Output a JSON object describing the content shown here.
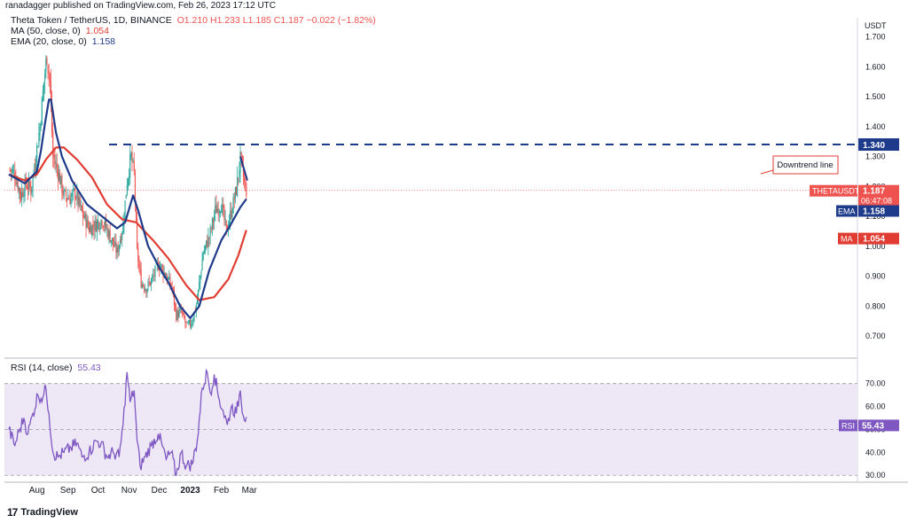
{
  "header": {
    "published": "ranadagger published on TradingView.com, Feb 26, 2023 17:12 UTC"
  },
  "legend": {
    "symbol": "Theta Token / TetherUS, 1D, BINANCE",
    "ohlc": "O1.210 H1.233 L1.185 C1.187 −0.022 (−1.82%)",
    "ma_label": "MA (50, close, 0)",
    "ma_value": "1.054",
    "ema_label": "EMA (20, close, 0)",
    "ema_value": "1.158",
    "rsi_label": "RSI (14, close)",
    "rsi_value": "55.43"
  },
  "brand": {
    "name": "TradingView",
    "logo": "17"
  },
  "colors": {
    "up": "#26a69a",
    "down": "#ef5350",
    "ema": "#1e3a8a",
    "ma": "#e03c31",
    "rsi": "#7e57c2",
    "band": "#ede7f6",
    "resistance": "#1e3a8a",
    "trend": "#1e3a8a"
  },
  "chart_data": [
    {
      "type": "candlestick",
      "title": "Theta Token / TetherUS, 1D, BINANCE",
      "y_axis_unit": "USDT",
      "ylim": [
        0.65,
        1.74
      ],
      "yticks": [
        "1.700",
        "1.600",
        "1.500",
        "1.400",
        "1.300",
        "1.200",
        "1.100",
        "1.000",
        "0.900",
        "0.800",
        "0.700"
      ],
      "xticks": [
        "Aug",
        "Sep",
        "Oct",
        "Nov",
        "Dec",
        "2023",
        "Feb",
        "Mar"
      ],
      "price_labels": [
        {
          "name": "1.340",
          "value": 1.34
        },
        {
          "name": "THETAUSDT",
          "value": 1.187,
          "text": "1.187",
          "extra": "06:47:08"
        },
        {
          "name": "EMA",
          "value": 1.158,
          "text": "1.158"
        },
        {
          "name": "MA",
          "value": 1.054,
          "text": "1.054"
        }
      ],
      "annotations": {
        "resistance_level": 1.34,
        "trendline_label": "Downtrend line",
        "trendline": [
          [
            "2023-02-20",
            1.3
          ],
          [
            "2023-02-27",
            1.22
          ]
        ]
      },
      "close_path": [
        [
          "2022-07-04",
          1.26
        ],
        [
          "2022-07-10",
          1.24
        ],
        [
          "2022-07-16",
          1.17
        ],
        [
          "2022-07-21",
          1.21
        ],
        [
          "2022-07-26",
          1.19
        ],
        [
          "2022-07-30",
          1.28
        ],
        [
          "2022-08-04",
          1.4
        ],
        [
          "2022-08-08",
          1.55
        ],
        [
          "2022-08-11",
          1.64
        ],
        [
          "2022-08-14",
          1.55
        ],
        [
          "2022-08-17",
          1.3
        ],
        [
          "2022-08-22",
          1.25
        ],
        [
          "2022-08-28",
          1.17
        ],
        [
          "2022-09-03",
          1.16
        ],
        [
          "2022-09-08",
          1.18
        ],
        [
          "2022-09-14",
          1.12
        ],
        [
          "2022-09-22",
          1.06
        ],
        [
          "2022-09-28",
          1.07
        ],
        [
          "2022-10-05",
          1.09
        ],
        [
          "2022-10-12",
          1.04
        ],
        [
          "2022-10-20",
          0.98
        ],
        [
          "2022-10-26",
          1.07
        ],
        [
          "2022-10-30",
          1.22
        ],
        [
          "2022-11-03",
          1.3
        ],
        [
          "2022-11-06",
          1.24
        ],
        [
          "2022-11-09",
          0.98
        ],
        [
          "2022-11-13",
          0.88
        ],
        [
          "2022-11-18",
          0.86
        ],
        [
          "2022-11-24",
          0.89
        ],
        [
          "2022-11-30",
          0.94
        ],
        [
          "2022-12-03",
          0.93
        ],
        [
          "2022-12-08",
          0.9
        ],
        [
          "2022-12-14",
          0.86
        ],
        [
          "2022-12-18",
          0.77
        ],
        [
          "2022-12-23",
          0.78
        ],
        [
          "2022-12-29",
          0.73
        ],
        [
          "2023-01-03",
          0.75
        ],
        [
          "2023-01-08",
          0.82
        ],
        [
          "2023-01-14",
          0.98
        ],
        [
          "2023-01-20",
          1.03
        ],
        [
          "2023-01-26",
          1.12
        ],
        [
          "2023-02-01",
          1.14
        ],
        [
          "2023-02-06",
          1.05
        ],
        [
          "2023-02-12",
          1.13
        ],
        [
          "2023-02-16",
          1.19
        ],
        [
          "2023-02-20",
          1.29
        ],
        [
          "2023-02-24",
          1.21
        ],
        [
          "2023-02-26",
          1.187
        ]
      ],
      "ema20": [
        [
          "2022-07-04",
          1.24
        ],
        [
          "2022-07-20",
          1.21
        ],
        [
          "2022-08-01",
          1.25
        ],
        [
          "2022-08-05",
          1.32
        ],
        [
          "2022-08-09",
          1.41
        ],
        [
          "2022-08-13",
          1.49
        ],
        [
          "2022-08-15",
          1.49
        ],
        [
          "2022-08-20",
          1.38
        ],
        [
          "2022-08-26",
          1.3
        ],
        [
          "2022-09-05",
          1.22
        ],
        [
          "2022-09-20",
          1.14
        ],
        [
          "2022-10-05",
          1.1
        ],
        [
          "2022-10-20",
          1.06
        ],
        [
          "2022-10-28",
          1.08
        ],
        [
          "2022-11-05",
          1.17
        ],
        [
          "2022-11-10",
          1.12
        ],
        [
          "2022-11-20",
          1.0
        ],
        [
          "2022-12-01",
          0.93
        ],
        [
          "2022-12-10",
          0.88
        ],
        [
          "2022-12-22",
          0.8
        ],
        [
          "2023-01-01",
          0.76
        ],
        [
          "2023-01-10",
          0.8
        ],
        [
          "2023-01-20",
          0.92
        ],
        [
          "2023-02-01",
          1.02
        ],
        [
          "2023-02-10",
          1.07
        ],
        [
          "2023-02-20",
          1.13
        ],
        [
          "2023-02-26",
          1.158
        ]
      ],
      "ma50": [
        [
          "2022-07-04",
          1.24
        ],
        [
          "2022-07-20",
          1.22
        ],
        [
          "2022-08-01",
          1.24
        ],
        [
          "2022-08-10",
          1.29
        ],
        [
          "2022-08-20",
          1.33
        ],
        [
          "2022-08-28",
          1.33
        ],
        [
          "2022-09-10",
          1.29
        ],
        [
          "2022-09-25",
          1.23
        ],
        [
          "2022-10-10",
          1.14
        ],
        [
          "2022-10-25",
          1.09
        ],
        [
          "2022-11-08",
          1.08
        ],
        [
          "2022-11-25",
          1.02
        ],
        [
          "2022-12-10",
          0.96
        ],
        [
          "2022-12-28",
          0.87
        ],
        [
          "2023-01-10",
          0.82
        ],
        [
          "2023-01-25",
          0.83
        ],
        [
          "2023-02-08",
          0.89
        ],
        [
          "2023-02-18",
          0.97
        ],
        [
          "2023-02-26",
          1.054
        ]
      ]
    },
    {
      "type": "line",
      "title": "RSI (14, close)",
      "ylim": [
        27,
        78
      ],
      "yticks": [
        "70.00",
        "60.00",
        "50.00",
        "40.00",
        "30.00"
      ],
      "band": [
        30,
        70
      ],
      "midline": 50,
      "last_label": {
        "name": "RSI",
        "text": "55.43",
        "value": 55.43
      },
      "series": [
        {
          "name": "RSI",
          "points": [
            [
              "2022-07-04",
              50
            ],
            [
              "2022-07-10",
              43
            ],
            [
              "2022-07-14",
              49
            ],
            [
              "2022-07-19",
              55
            ],
            [
              "2022-07-23",
              48
            ],
            [
              "2022-07-28",
              57
            ],
            [
              "2022-08-02",
              65
            ],
            [
              "2022-08-07",
              64
            ],
            [
              "2022-08-10",
              68
            ],
            [
              "2022-08-13",
              57
            ],
            [
              "2022-08-17",
              40
            ],
            [
              "2022-08-22",
              38
            ],
            [
              "2022-08-28",
              40
            ],
            [
              "2022-09-04",
              42
            ],
            [
              "2022-09-10",
              44
            ],
            [
              "2022-09-15",
              38
            ],
            [
              "2022-09-22",
              40
            ],
            [
              "2022-09-29",
              45
            ],
            [
              "2022-10-04",
              44
            ],
            [
              "2022-10-10",
              38
            ],
            [
              "2022-10-16",
              40
            ],
            [
              "2022-10-22",
              38
            ],
            [
              "2022-10-26",
              52
            ],
            [
              "2022-10-30",
              75
            ],
            [
              "2022-11-02",
              62
            ],
            [
              "2022-11-06",
              67
            ],
            [
              "2022-11-09",
              45
            ],
            [
              "2022-11-12",
              34
            ],
            [
              "2022-11-17",
              38
            ],
            [
              "2022-11-23",
              43
            ],
            [
              "2022-11-30",
              48
            ],
            [
              "2022-12-04",
              43
            ],
            [
              "2022-12-08",
              37
            ],
            [
              "2022-12-13",
              40
            ],
            [
              "2022-12-18",
              30
            ],
            [
              "2022-12-23",
              40
            ],
            [
              "2022-12-28",
              34
            ],
            [
              "2023-01-03",
              35
            ],
            [
              "2023-01-08",
              45
            ],
            [
              "2023-01-13",
              68
            ],
            [
              "2023-01-18",
              75
            ],
            [
              "2023-01-21",
              66
            ],
            [
              "2023-01-25",
              74
            ],
            [
              "2023-01-30",
              63
            ],
            [
              "2023-02-03",
              58
            ],
            [
              "2023-02-07",
              52
            ],
            [
              "2023-02-11",
              60
            ],
            [
              "2023-02-16",
              57
            ],
            [
              "2023-02-20",
              67
            ],
            [
              "2023-02-23",
              56
            ],
            [
              "2023-02-26",
              55.43
            ]
          ]
        }
      ]
    }
  ]
}
